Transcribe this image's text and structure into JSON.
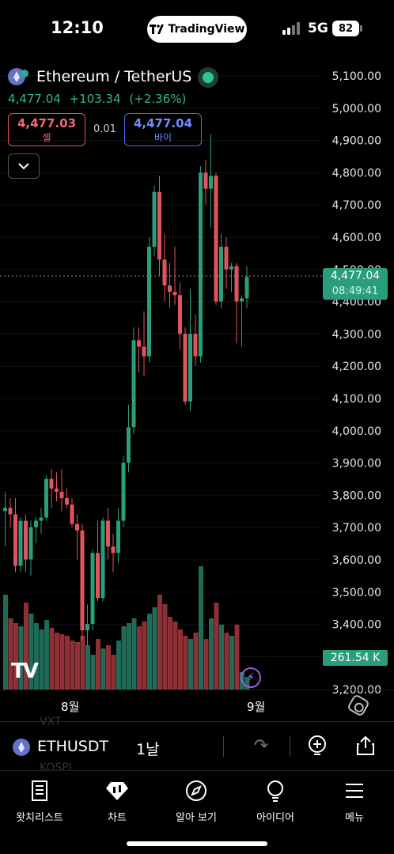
{
  "status_bar": {
    "time": "12:10",
    "app_badge": "TradingView",
    "network": "5G",
    "battery": "82"
  },
  "header": {
    "pair_title": "Ethereum / TetherUS",
    "last_price": "4,477.04",
    "change": "+103.34",
    "change_pct": "(+2.36%)",
    "sell": {
      "value": "4,477.03",
      "label": "셀"
    },
    "spread": "0.01",
    "buy": {
      "value": "4,477.04",
      "label": "바이"
    }
  },
  "colors": {
    "up": "#2a9d7d",
    "down": "#e0555d",
    "background": "#000000"
  },
  "price_axis": [
    "5,100.00",
    "5,000.00",
    "4,900.00",
    "4,800.00",
    "4,700.00",
    "4,600.00",
    "4,500.00",
    "4,400.00",
    "4,300.00",
    "4,200.00",
    "4,100.00",
    "4,000.00",
    "3,900.00",
    "3,800.00",
    "3,700.00",
    "3,600.00",
    "3,500.00",
    "3,400.00",
    "3,200.00"
  ],
  "last_price_tag": {
    "price": "4,477.04",
    "countdown": "08:49:41"
  },
  "volume_tag": "261.54 K",
  "time_axis": [
    "8월",
    "9월"
  ],
  "chart_data": {
    "type": "candlestick",
    "y_range": [
      3200,
      5100
    ],
    "candles": [
      {
        "o": 3750,
        "h": 3810,
        "l": 3640,
        "c": 3760
      },
      {
        "o": 3760,
        "h": 3790,
        "l": 3700,
        "c": 3740
      },
      {
        "o": 3740,
        "h": 3790,
        "l": 3560,
        "c": 3580
      },
      {
        "o": 3580,
        "h": 3730,
        "l": 3560,
        "c": 3720
      },
      {
        "o": 3720,
        "h": 3740,
        "l": 3560,
        "c": 3600
      },
      {
        "o": 3600,
        "h": 3720,
        "l": 3550,
        "c": 3700
      },
      {
        "o": 3700,
        "h": 3730,
        "l": 3650,
        "c": 3720
      },
      {
        "o": 3720,
        "h": 3760,
        "l": 3680,
        "c": 3730
      },
      {
        "o": 3730,
        "h": 3860,
        "l": 3720,
        "c": 3850
      },
      {
        "o": 3850,
        "h": 3880,
        "l": 3760,
        "c": 3820
      },
      {
        "o": 3820,
        "h": 3870,
        "l": 3780,
        "c": 3810
      },
      {
        "o": 3810,
        "h": 3880,
        "l": 3750,
        "c": 3790
      },
      {
        "o": 3790,
        "h": 3820,
        "l": 3760,
        "c": 3770
      },
      {
        "o": 3770,
        "h": 3790,
        "l": 3700,
        "c": 3710
      },
      {
        "o": 3710,
        "h": 3740,
        "l": 3600,
        "c": 3690
      },
      {
        "o": 3690,
        "h": 3710,
        "l": 3350,
        "c": 3380
      },
      {
        "o": 3380,
        "h": 3460,
        "l": 3330,
        "c": 3400
      },
      {
        "o": 3400,
        "h": 3630,
        "l": 3380,
        "c": 3620
      },
      {
        "o": 3620,
        "h": 3720,
        "l": 3470,
        "c": 3480
      },
      {
        "o": 3480,
        "h": 3730,
        "l": 3470,
        "c": 3720
      },
      {
        "o": 3720,
        "h": 3760,
        "l": 3600,
        "c": 3640
      },
      {
        "o": 3640,
        "h": 3680,
        "l": 3560,
        "c": 3620
      },
      {
        "o": 3620,
        "h": 3760,
        "l": 3590,
        "c": 3720
      },
      {
        "o": 3720,
        "h": 3920,
        "l": 3700,
        "c": 3900
      },
      {
        "o": 3900,
        "h": 4080,
        "l": 3870,
        "c": 4010
      },
      {
        "o": 4010,
        "h": 4320,
        "l": 3990,
        "c": 4280
      },
      {
        "o": 4280,
        "h": 4320,
        "l": 4180,
        "c": 4260
      },
      {
        "o": 4260,
        "h": 4370,
        "l": 4170,
        "c": 4230
      },
      {
        "o": 4230,
        "h": 4600,
        "l": 4210,
        "c": 4570
      },
      {
        "o": 4570,
        "h": 4760,
        "l": 4540,
        "c": 4740
      },
      {
        "o": 4740,
        "h": 4790,
        "l": 4480,
        "c": 4530
      },
      {
        "o": 4530,
        "h": 4610,
        "l": 4400,
        "c": 4450
      },
      {
        "o": 4450,
        "h": 4520,
        "l": 4380,
        "c": 4430
      },
      {
        "o": 4430,
        "h": 4570,
        "l": 4390,
        "c": 4420
      },
      {
        "o": 4420,
        "h": 4460,
        "l": 4250,
        "c": 4300
      },
      {
        "o": 4300,
        "h": 4320,
        "l": 4080,
        "c": 4090
      },
      {
        "o": 4090,
        "h": 4440,
        "l": 4060,
        "c": 4300
      },
      {
        "o": 4300,
        "h": 4360,
        "l": 4200,
        "c": 4230
      },
      {
        "o": 4230,
        "h": 4820,
        "l": 4210,
        "c": 4800
      },
      {
        "o": 4800,
        "h": 4840,
        "l": 4700,
        "c": 4750
      },
      {
        "o": 4750,
        "h": 4920,
        "l": 4630,
        "c": 4790
      },
      {
        "o": 4790,
        "h": 4800,
        "l": 4390,
        "c": 4400
      },
      {
        "o": 4400,
        "h": 4610,
        "l": 4380,
        "c": 4570
      },
      {
        "o": 4570,
        "h": 4600,
        "l": 4440,
        "c": 4500
      },
      {
        "o": 4500,
        "h": 4520,
        "l": 4430,
        "c": 4510
      },
      {
        "o": 4510,
        "h": 4520,
        "l": 4270,
        "c": 4400
      },
      {
        "o": 4400,
        "h": 4420,
        "l": 4260,
        "c": 4410
      },
      {
        "o": 4410,
        "h": 4510,
        "l": 4380,
        "c": 4477
      }
    ],
    "volume": [
      0.6,
      0.45,
      0.42,
      0.4,
      0.55,
      0.48,
      0.42,
      0.38,
      0.44,
      0.39,
      0.36,
      0.35,
      0.34,
      0.31,
      0.3,
      0.34,
      0.28,
      0.22,
      0.32,
      0.26,
      0.28,
      0.22,
      0.31,
      0.4,
      0.42,
      0.45,
      0.4,
      0.43,
      0.48,
      0.52,
      0.6,
      0.54,
      0.46,
      0.43,
      0.38,
      0.34,
      0.32,
      0.36,
      0.78,
      0.32,
      0.45,
      0.55,
      0.41,
      0.36,
      0.34,
      0.41,
      0.11,
      0.08
    ]
  },
  "symbol_bar": {
    "symbol": "ETHUSDT",
    "timeframe": "1날",
    "ghost_top": "VXT",
    "ghost_bottom": "KOSPI"
  },
  "nav": [
    {
      "label": "왓치리스트",
      "icon": "watchlist-icon"
    },
    {
      "label": "차트",
      "icon": "chart-icon"
    },
    {
      "label": "알아 보기",
      "icon": "explore-icon"
    },
    {
      "label": "아이디어",
      "icon": "ideas-icon"
    },
    {
      "label": "메뉴",
      "icon": "menu-icon"
    }
  ]
}
